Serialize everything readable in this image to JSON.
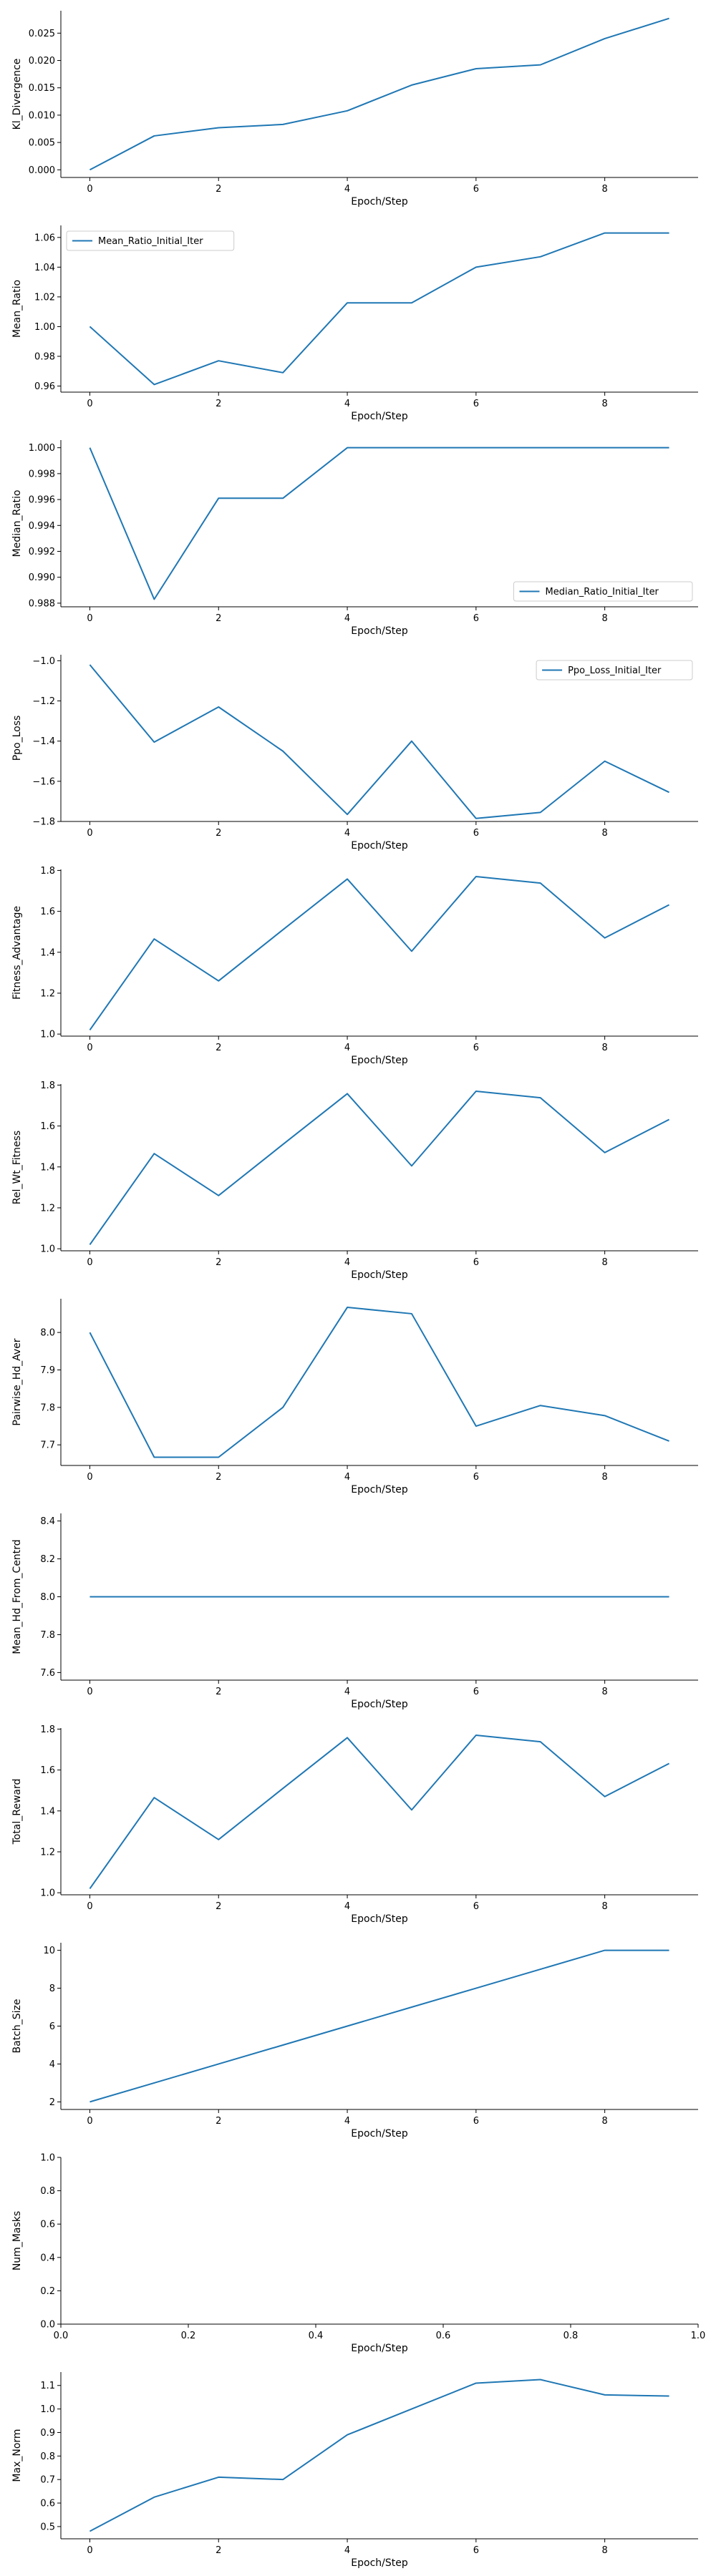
{
  "chart_data": [
    {
      "type": "line",
      "xlabel": "Epoch/Step",
      "ylabel": "Kl_Divergence",
      "x": [
        0,
        1,
        2,
        3,
        4,
        5,
        6,
        7,
        8,
        9
      ],
      "series": [
        {
          "values": [
            0.0,
            0.0062,
            0.0077,
            0.0083,
            0.0108,
            0.0155,
            0.0185,
            0.0192,
            0.024,
            0.0277
          ]
        }
      ],
      "xlim": [
        -0.45,
        9.45
      ],
      "ylim": [
        -0.0014,
        0.0291
      ],
      "xticks": [
        0,
        2,
        4,
        6,
        8
      ],
      "xtick_labels": [
        "0",
        "2",
        "4",
        "6",
        "8"
      ],
      "yticks": [
        0.0,
        0.005,
        0.01,
        0.015,
        0.02,
        0.025
      ],
      "ytick_labels": [
        "0.000",
        "0.005",
        "0.010",
        "0.015",
        "0.020",
        "0.025"
      ],
      "legend": null,
      "grid": false
    },
    {
      "type": "line",
      "xlabel": "Epoch/Step",
      "ylabel": "Mean_Ratio",
      "x": [
        0,
        1,
        2,
        3,
        4,
        5,
        6,
        7,
        8,
        9
      ],
      "series": [
        {
          "name": "Mean_Ratio_Initial_Iter",
          "values": [
            1.0,
            0.961,
            0.977,
            0.969,
            1.016,
            1.016,
            1.04,
            1.047,
            1.063,
            1.063
          ]
        }
      ],
      "xlim": [
        -0.45,
        9.45
      ],
      "ylim": [
        0.9559,
        1.0681
      ],
      "xticks": [
        0,
        2,
        4,
        6,
        8
      ],
      "xtick_labels": [
        "0",
        "2",
        "4",
        "6",
        "8"
      ],
      "yticks": [
        0.96,
        0.98,
        1.0,
        1.02,
        1.04,
        1.06
      ],
      "ytick_labels": [
        "0.96",
        "0.98",
        "1.00",
        "1.02",
        "1.04",
        "1.06"
      ],
      "legend": "upper-left",
      "grid": false
    },
    {
      "type": "line",
      "xlabel": "Epoch/Step",
      "ylabel": "Median_Ratio",
      "x": [
        0,
        1,
        2,
        3,
        4,
        5,
        6,
        7,
        8,
        9
      ],
      "series": [
        {
          "name": "Median_Ratio_Initial_Iter",
          "values": [
            1.0,
            0.9883,
            0.9961,
            0.9961,
            1.0,
            1.0,
            1.0,
            1.0,
            1.0,
            1.0
          ]
        }
      ],
      "xlim": [
        -0.45,
        9.45
      ],
      "ylim": [
        0.98772,
        1.00059
      ],
      "xticks": [
        0,
        2,
        4,
        6,
        8
      ],
      "xtick_labels": [
        "0",
        "2",
        "4",
        "6",
        "8"
      ],
      "yticks": [
        0.988,
        0.99,
        0.992,
        0.994,
        0.996,
        0.998,
        1.0
      ],
      "ytick_labels": [
        "0.988",
        "0.990",
        "0.992",
        "0.994",
        "0.996",
        "0.998",
        "1.000"
      ],
      "legend": "lower-right",
      "grid": false
    },
    {
      "type": "line",
      "xlabel": "Epoch/Step",
      "ylabel": "Ppo_Loss",
      "x": [
        0,
        1,
        2,
        3,
        4,
        5,
        6,
        7,
        8,
        9
      ],
      "series": [
        {
          "name": "Ppo_Loss_Initial_Iter",
          "values": [
            -1.02,
            -1.405,
            -1.23,
            -1.45,
            -1.765,
            -1.4,
            -1.785,
            -1.755,
            -1.5,
            -1.655
          ]
        }
      ],
      "xlim": [
        -0.45,
        9.45
      ],
      "ylim": [
        -1.8,
        -0.97
      ],
      "xticks": [
        0,
        2,
        4,
        6,
        8
      ],
      "xtick_labels": [
        "0",
        "2",
        "4",
        "6",
        "8"
      ],
      "yticks": [
        -1.8,
        -1.6,
        -1.4,
        -1.2,
        -1.0
      ],
      "ytick_labels": [
        "−1.8",
        "−1.6",
        "−1.4",
        "−1.2",
        "−1.0"
      ],
      "legend": "upper-right",
      "grid": false
    },
    {
      "type": "line",
      "xlabel": "Epoch/Step",
      "ylabel": "Fitness_Advantage",
      "x": [
        0,
        1,
        2,
        3,
        4,
        5,
        6,
        7,
        8,
        9
      ],
      "series": [
        {
          "values": [
            1.02,
            1.465,
            1.26,
            1.51,
            1.758,
            1.405,
            1.77,
            1.738,
            1.47,
            1.632
          ]
        }
      ],
      "xlim": [
        -0.45,
        9.45
      ],
      "ylim": [
        0.99,
        1.805
      ],
      "xticks": [
        0,
        2,
        4,
        6,
        8
      ],
      "xtick_labels": [
        "0",
        "2",
        "4",
        "6",
        "8"
      ],
      "yticks": [
        1.0,
        1.2,
        1.4,
        1.6,
        1.8
      ],
      "ytick_labels": [
        "1.0",
        "1.2",
        "1.4",
        "1.6",
        "1.8"
      ],
      "legend": null,
      "grid": false
    },
    {
      "type": "line",
      "xlabel": "Epoch/Step",
      "ylabel": "Rel_Wt_Fitness",
      "x": [
        0,
        1,
        2,
        3,
        4,
        5,
        6,
        7,
        8,
        9
      ],
      "series": [
        {
          "values": [
            1.02,
            1.465,
            1.26,
            1.51,
            1.758,
            1.405,
            1.77,
            1.738,
            1.47,
            1.632
          ]
        }
      ],
      "xlim": [
        -0.45,
        9.45
      ],
      "ylim": [
        0.99,
        1.805
      ],
      "xticks": [
        0,
        2,
        4,
        6,
        8
      ],
      "xtick_labels": [
        "0",
        "2",
        "4",
        "6",
        "8"
      ],
      "yticks": [
        1.0,
        1.2,
        1.4,
        1.6,
        1.8
      ],
      "ytick_labels": [
        "1.0",
        "1.2",
        "1.4",
        "1.6",
        "1.8"
      ],
      "legend": null,
      "grid": false
    },
    {
      "type": "line",
      "xlabel": "Epoch/Step",
      "ylabel": "Pairwise_Hd_Aver",
      "x": [
        0,
        1,
        2,
        3,
        4,
        5,
        6,
        7,
        8,
        9
      ],
      "series": [
        {
          "values": [
            8.0,
            7.667,
            7.667,
            7.8,
            8.067,
            8.05,
            7.75,
            7.805,
            7.778,
            7.71
          ]
        }
      ],
      "xlim": [
        -0.45,
        9.45
      ],
      "ylim": [
        7.645,
        8.09
      ],
      "xticks": [
        0,
        2,
        4,
        6,
        8
      ],
      "xtick_labels": [
        "0",
        "2",
        "4",
        "6",
        "8"
      ],
      "yticks": [
        7.7,
        7.8,
        7.9,
        8.0
      ],
      "ytick_labels": [
        "7.7",
        "7.8",
        "7.9",
        "8.0"
      ],
      "legend": null,
      "grid": false
    },
    {
      "type": "line",
      "xlabel": "Epoch/Step",
      "ylabel": "Mean_Hd_From_Centrd",
      "x": [
        0,
        1,
        2,
        3,
        4,
        5,
        6,
        7,
        8,
        9
      ],
      "series": [
        {
          "values": [
            8.0,
            8.0,
            8.0,
            8.0,
            8.0,
            8.0,
            8.0,
            8.0,
            8.0,
            8.0
          ]
        }
      ],
      "xlim": [
        -0.45,
        9.45
      ],
      "ylim": [
        7.56,
        8.44
      ],
      "xticks": [
        0,
        2,
        4,
        6,
        8
      ],
      "xtick_labels": [
        "0",
        "2",
        "4",
        "6",
        "8"
      ],
      "yticks": [
        7.6,
        7.8,
        8.0,
        8.2,
        8.4
      ],
      "ytick_labels": [
        "7.6",
        "7.8",
        "8.0",
        "8.2",
        "8.4"
      ],
      "legend": null,
      "grid": false
    },
    {
      "type": "line",
      "xlabel": "Epoch/Step",
      "ylabel": "Total_Reward",
      "x": [
        0,
        1,
        2,
        3,
        4,
        5,
        6,
        7,
        8,
        9
      ],
      "series": [
        {
          "values": [
            1.02,
            1.465,
            1.26,
            1.51,
            1.758,
            1.405,
            1.77,
            1.738,
            1.47,
            1.632
          ]
        }
      ],
      "xlim": [
        -0.45,
        9.45
      ],
      "ylim": [
        0.99,
        1.805
      ],
      "xticks": [
        0,
        2,
        4,
        6,
        8
      ],
      "xtick_labels": [
        "0",
        "2",
        "4",
        "6",
        "8"
      ],
      "yticks": [
        1.0,
        1.2,
        1.4,
        1.6,
        1.8
      ],
      "ytick_labels": [
        "1.0",
        "1.2",
        "1.4",
        "1.6",
        "1.8"
      ],
      "legend": null,
      "grid": false
    },
    {
      "type": "line",
      "xlabel": "Epoch/Step",
      "ylabel": "Batch_Size",
      "x": [
        0,
        1,
        2,
        3,
        4,
        5,
        6,
        7,
        8,
        9
      ],
      "series": [
        {
          "values": [
            2,
            3,
            4,
            5,
            6,
            7,
            8,
            9,
            10,
            10
          ]
        }
      ],
      "xlim": [
        -0.45,
        9.45
      ],
      "ylim": [
        1.6,
        10.4
      ],
      "xticks": [
        0,
        2,
        4,
        6,
        8
      ],
      "xtick_labels": [
        "0",
        "2",
        "4",
        "6",
        "8"
      ],
      "yticks": [
        2,
        4,
        6,
        8,
        10
      ],
      "ytick_labels": [
        "2",
        "4",
        "6",
        "8",
        "10"
      ],
      "legend": null,
      "grid": false
    },
    {
      "type": "line",
      "xlabel": "Epoch/Step",
      "ylabel": "Num_Masks",
      "x": [],
      "series": [],
      "xlim": [
        0.0,
        1.0
      ],
      "ylim": [
        0.0,
        1.0
      ],
      "xticks": [
        0.0,
        0.2,
        0.4,
        0.6,
        0.8,
        1.0
      ],
      "xtick_labels": [
        "0.0",
        "0.2",
        "0.4",
        "0.6",
        "0.8",
        "1.0"
      ],
      "yticks": [
        0.0,
        0.2,
        0.4,
        0.6,
        0.8,
        1.0
      ],
      "ytick_labels": [
        "0.0",
        "0.2",
        "0.4",
        "0.6",
        "0.8",
        "1.0"
      ],
      "legend": null,
      "grid": false
    },
    {
      "type": "line",
      "xlabel": "Epoch/Step",
      "ylabel": "Max_Norm",
      "x": [
        0,
        1,
        2,
        3,
        4,
        5,
        6,
        7,
        8,
        9
      ],
      "series": [
        {
          "values": [
            0.48,
            0.625,
            0.71,
            0.7,
            0.89,
            1.0,
            1.11,
            1.125,
            1.06,
            1.055
          ]
        }
      ],
      "xlim": [
        -0.45,
        9.45
      ],
      "ylim": [
        0.448,
        1.157
      ],
      "xticks": [
        0,
        2,
        4,
        6,
        8
      ],
      "xtick_labels": [
        "0",
        "2",
        "4",
        "6",
        "8"
      ],
      "yticks": [
        0.5,
        0.6,
        0.7,
        0.8,
        0.9,
        1.0,
        1.1
      ],
      "ytick_labels": [
        "0.5",
        "0.6",
        "0.7",
        "0.8",
        "0.9",
        "1.0",
        "1.1"
      ],
      "legend": null,
      "grid": false
    }
  ],
  "colors": {
    "line": "#1f77b4",
    "axis": "#000000",
    "legend_border": "#cccccc"
  }
}
